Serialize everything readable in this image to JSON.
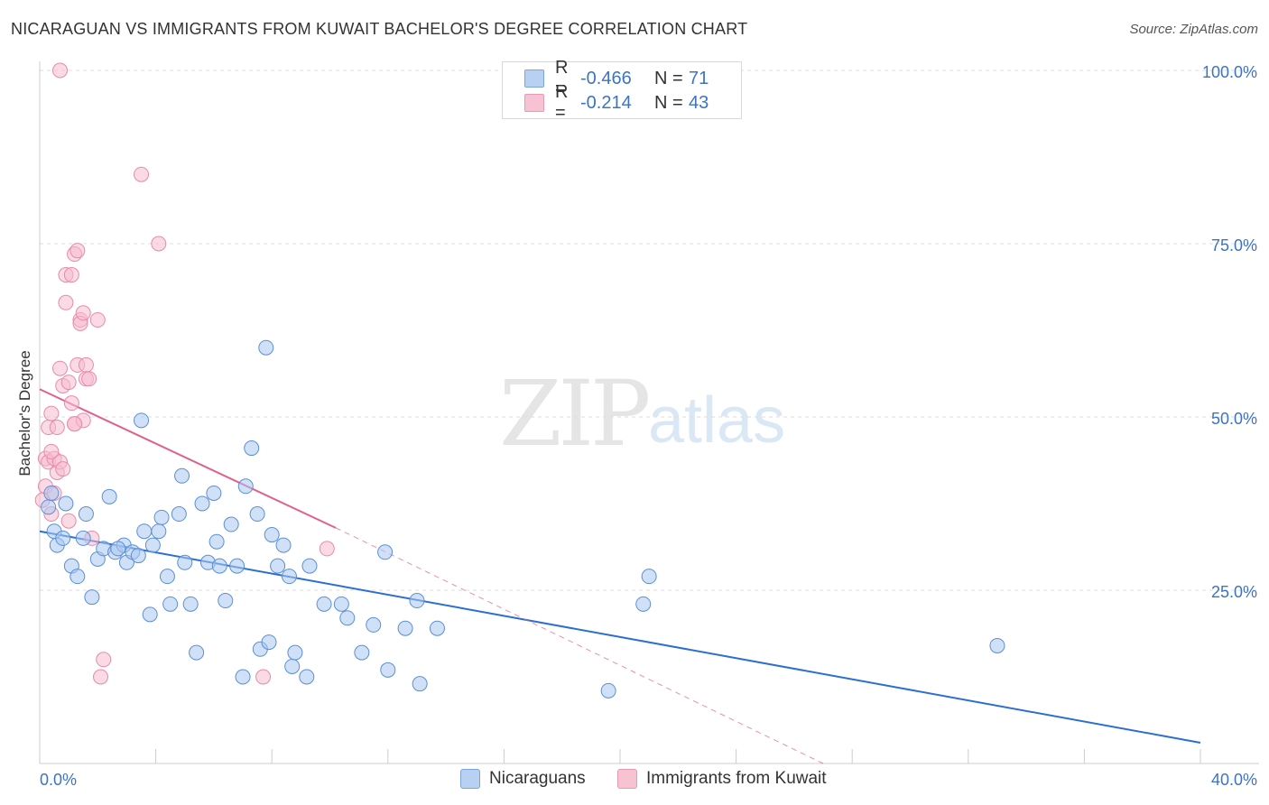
{
  "title": "NICARAGUAN VS IMMIGRANTS FROM KUWAIT BACHELOR'S DEGREE CORRELATION CHART",
  "source": "Source: ZipAtlas.com",
  "watermark": {
    "zip": "ZIP",
    "atlas": "atlas"
  },
  "legend": {
    "rows": [
      {
        "r_label": "R =",
        "r_value": "-0.466",
        "n_label": "N =",
        "n_value": "71",
        "color": "#b8d1f3"
      },
      {
        "r_label": "R =",
        "r_value": "-0.214",
        "n_label": "N =",
        "n_value": "43",
        "color": "#f7c3d3"
      }
    ]
  },
  "bottom_legend": [
    {
      "label": "Nicaraguans",
      "color": "#b8d1f3"
    },
    {
      "label": "Immigrants from Kuwait",
      "color": "#f7c3d3"
    }
  ],
  "colors": {
    "blue_fill": "#aac8f0",
    "blue_stroke": "#5b8fd6",
    "blue_line": "#2c6fcf",
    "pink_fill": "#f6bccf",
    "pink_stroke": "#e98aaa",
    "pink_line": "#e0608e",
    "axis_text": "#3b74c4",
    "grid": "#dddddd"
  },
  "chart_data": {
    "type": "scatter",
    "title": "NICARAGUAN VS IMMIGRANTS FROM KUWAIT BACHELOR'S DEGREE CORRELATION CHART",
    "xlabel": "",
    "ylabel": "Bachelor's Degree",
    "xlim": [
      0,
      40
    ],
    "ylim": [
      0,
      100
    ],
    "x_tick_labels": [
      "0.0%",
      "40.0%"
    ],
    "y_tick_labels": [
      "25.0%",
      "50.0%",
      "75.0%",
      "100.0%"
    ],
    "y_ticks": [
      25,
      50,
      75,
      100
    ],
    "series": [
      {
        "name": "Nicaraguans",
        "r": -0.466,
        "n": 71,
        "trend": {
          "x0": 0,
          "y0": 33.5,
          "x1": 40,
          "y1": 3.0
        },
        "points": [
          [
            0.3,
            37.0
          ],
          [
            0.5,
            33.5
          ],
          [
            0.6,
            31.5
          ],
          [
            0.8,
            32.5
          ],
          [
            0.9,
            37.5
          ],
          [
            1.1,
            28.5
          ],
          [
            1.3,
            27.0
          ],
          [
            1.5,
            32.5
          ],
          [
            1.6,
            36.0
          ],
          [
            1.8,
            24.0
          ],
          [
            2.0,
            29.5
          ],
          [
            2.4,
            38.5
          ],
          [
            2.2,
            31.0
          ],
          [
            2.6,
            30.5
          ],
          [
            2.9,
            31.5
          ],
          [
            3.0,
            29.0
          ],
          [
            3.2,
            30.5
          ],
          [
            3.4,
            30.0
          ],
          [
            3.5,
            49.5
          ],
          [
            3.6,
            33.5
          ],
          [
            3.8,
            21.5
          ],
          [
            3.9,
            31.5
          ],
          [
            4.1,
            33.5
          ],
          [
            4.2,
            35.5
          ],
          [
            4.4,
            27.0
          ],
          [
            4.5,
            23.0
          ],
          [
            4.8,
            36.0
          ],
          [
            4.9,
            41.5
          ],
          [
            5.0,
            29.0
          ],
          [
            5.2,
            23.0
          ],
          [
            5.4,
            16.0
          ],
          [
            5.6,
            37.5
          ],
          [
            5.8,
            29.0
          ],
          [
            6.0,
            39.0
          ],
          [
            6.1,
            32.0
          ],
          [
            6.2,
            28.5
          ],
          [
            6.4,
            23.5
          ],
          [
            6.6,
            34.5
          ],
          [
            6.8,
            28.5
          ],
          [
            7.0,
            12.5
          ],
          [
            7.1,
            40.0
          ],
          [
            7.3,
            45.5
          ],
          [
            7.5,
            36.0
          ],
          [
            7.6,
            16.5
          ],
          [
            7.8,
            60.0
          ],
          [
            7.9,
            17.5
          ],
          [
            8.0,
            33.0
          ],
          [
            8.2,
            28.5
          ],
          [
            8.4,
            31.5
          ],
          [
            8.6,
            27.0
          ],
          [
            8.7,
            14.0
          ],
          [
            8.8,
            16.0
          ],
          [
            9.2,
            12.5
          ],
          [
            9.3,
            28.5
          ],
          [
            9.8,
            23.0
          ],
          [
            10.4,
            23.0
          ],
          [
            10.6,
            21.0
          ],
          [
            11.1,
            16.0
          ],
          [
            11.5,
            20.0
          ],
          [
            11.9,
            30.5
          ],
          [
            12.0,
            13.5
          ],
          [
            12.6,
            19.5
          ],
          [
            13.0,
            23.5
          ],
          [
            13.1,
            11.5
          ],
          [
            13.7,
            19.5
          ],
          [
            19.6,
            10.5
          ],
          [
            20.8,
            23.0
          ],
          [
            21.0,
            27.0
          ],
          [
            33.0,
            17.0
          ],
          [
            0.4,
            39.0
          ],
          [
            2.7,
            31.0
          ]
        ]
      },
      {
        "name": "Immigrants from Kuwait",
        "r": -0.214,
        "n": 43,
        "trend": {
          "x0": 0,
          "y0": 54.0,
          "x1": 10.2,
          "y1": 34.0
        },
        "trend_ext": {
          "x0": 10.2,
          "y0": 34.0,
          "x1": 27.0,
          "y1": 0.0
        },
        "points": [
          [
            0.1,
            38.0
          ],
          [
            0.2,
            44.0
          ],
          [
            0.2,
            40.0
          ],
          [
            0.3,
            48.5
          ],
          [
            0.3,
            43.5
          ],
          [
            0.4,
            50.5
          ],
          [
            0.4,
            36.0
          ],
          [
            0.5,
            44.0
          ],
          [
            0.5,
            39.0
          ],
          [
            0.6,
            42.0
          ],
          [
            0.6,
            48.5
          ],
          [
            0.7,
            57.0
          ],
          [
            0.7,
            43.5
          ],
          [
            0.8,
            42.5
          ],
          [
            0.8,
            54.5
          ],
          [
            0.9,
            66.5
          ],
          [
            0.9,
            70.5
          ],
          [
            1.0,
            55.0
          ],
          [
            1.0,
            35.0
          ],
          [
            1.1,
            70.5
          ],
          [
            1.1,
            52.0
          ],
          [
            1.2,
            73.5
          ],
          [
            1.2,
            49.0
          ],
          [
            1.3,
            74.0
          ],
          [
            1.3,
            57.5
          ],
          [
            1.4,
            64.0
          ],
          [
            1.4,
            63.5
          ],
          [
            1.5,
            65.0
          ],
          [
            1.5,
            49.5
          ],
          [
            1.6,
            57.5
          ],
          [
            1.6,
            55.5
          ],
          [
            1.7,
            55.5
          ],
          [
            1.8,
            32.5
          ],
          [
            2.0,
            64.0
          ],
          [
            2.1,
            12.5
          ],
          [
            2.2,
            15.0
          ],
          [
            3.5,
            85.0
          ],
          [
            4.1,
            75.0
          ],
          [
            7.7,
            12.5
          ],
          [
            9.9,
            31.0
          ],
          [
            0.7,
            100.0
          ],
          [
            0.4,
            45.0
          ],
          [
            1.2,
            49.0
          ]
        ]
      }
    ]
  }
}
